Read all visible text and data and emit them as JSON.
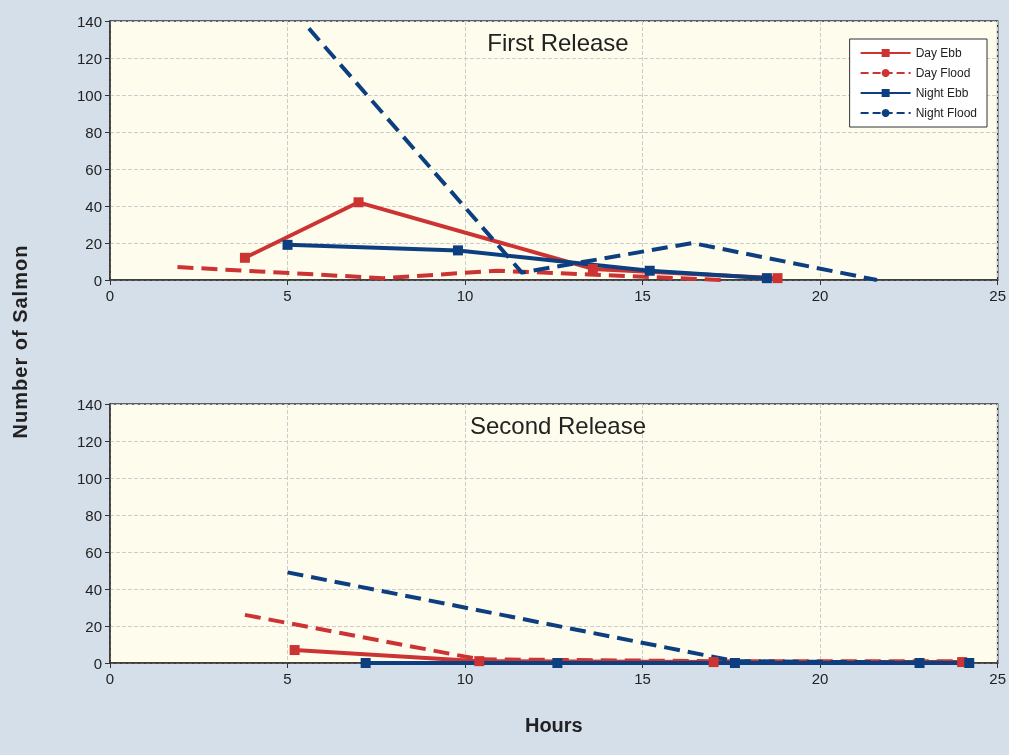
{
  "chart_data": [
    {
      "type": "line",
      "title": "First Release",
      "ylabel": "Number of Salmon",
      "xlim": [
        0,
        25
      ],
      "xticks": [
        0,
        5,
        10,
        15,
        20,
        25
      ],
      "ylim": [
        0,
        140
      ],
      "yticks": [
        0,
        20,
        40,
        60,
        80,
        100,
        120,
        140
      ],
      "grid": true,
      "legend": "top right",
      "series": [
        {
          "name": "Day Ebb",
          "color": "#cc3333",
          "line_style": "solid",
          "marker": "square",
          "x": [
            3.8,
            7.0,
            13.6,
            18.8
          ],
          "values": [
            12,
            42,
            6,
            1
          ]
        },
        {
          "name": "Day Flood",
          "color": "#cc3333",
          "line_style": "dashed",
          "marker": "none",
          "x": [
            1.9,
            7.7,
            10.9,
            13.5,
            17.2
          ],
          "values": [
            7,
            1,
            5,
            3,
            0
          ]
        },
        {
          "name": "Night Ebb",
          "color": "#0d3f80",
          "line_style": "solid",
          "marker": "square",
          "x": [
            5.0,
            9.8,
            15.2,
            18.5
          ],
          "values": [
            19,
            16,
            5,
            1
          ]
        },
        {
          "name": "Night Flood",
          "color": "#0d3f80",
          "line_style": "dashed",
          "marker": "none",
          "x": [
            5.6,
            11.6,
            16.4,
            21.6
          ],
          "values": [
            136,
            4,
            20,
            0
          ]
        }
      ]
    },
    {
      "type": "line",
      "title": "Second Release",
      "xlabel": "Hours",
      "xlim": [
        0,
        25
      ],
      "xticks": [
        0,
        5,
        10,
        15,
        20,
        25
      ],
      "ylim": [
        0,
        140
      ],
      "yticks": [
        0,
        20,
        40,
        60,
        80,
        100,
        120,
        140
      ],
      "grid": true,
      "series": [
        {
          "color": "#cc3333",
          "line_style": "solid",
          "marker": "square",
          "x": [
            5.2,
            10.4,
            17.0,
            24.0
          ],
          "values": [
            7,
            1,
            0.5,
            0.5
          ]
        },
        {
          "color": "#cc3333",
          "line_style": "dashed",
          "marker": "none",
          "x": [
            3.8,
            10.4,
            17.0,
            24.0
          ],
          "values": [
            26,
            2,
            1,
            1
          ]
        },
        {
          "color": "#0d3f80",
          "line_style": "solid",
          "marker": "square",
          "x": [
            7.2,
            12.6,
            17.6,
            22.8,
            24.2
          ],
          "values": [
            0,
            0,
            0,
            0,
            0
          ]
        },
        {
          "color": "#0d3f80",
          "line_style": "dashed",
          "marker": "none",
          "x": [
            5.0,
            17.6,
            24.2
          ],
          "values": [
            49,
            1,
            0
          ]
        }
      ]
    }
  ]
}
